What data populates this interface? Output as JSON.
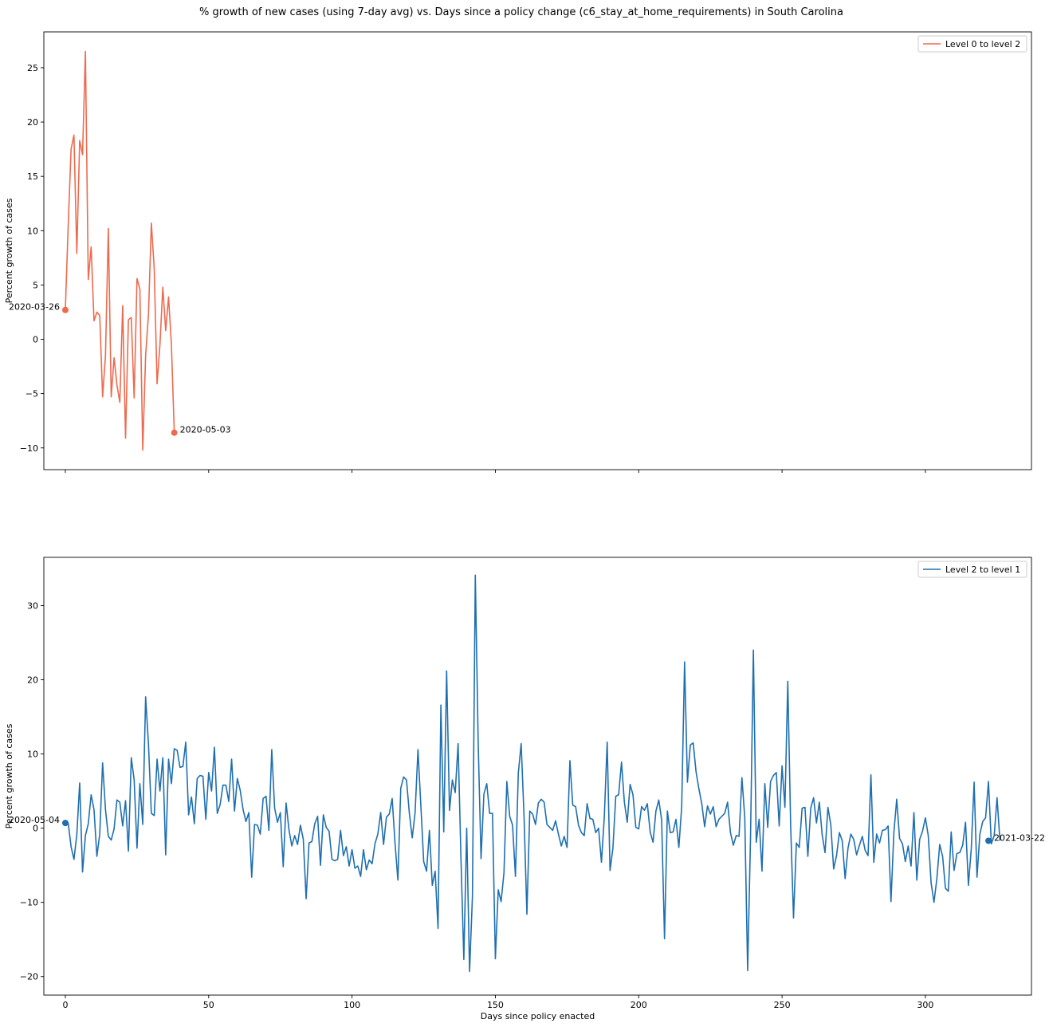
{
  "chart_data": [
    {
      "type": "line",
      "title": "% growth of new cases (using 7-day avg) vs. Days since a policy change (c6_stay_at_home_requirements) in South Carolina",
      "xlabel": "",
      "ylabel": "Percent growth of cases",
      "xlim": [
        -7.5,
        337
      ],
      "ylim": [
        -12,
        28.3
      ],
      "xticks": [
        0,
        50,
        100,
        150,
        200,
        250,
        300
      ],
      "xtick_labels_visible": false,
      "yticks": [
        -10,
        -5,
        0,
        5,
        10,
        15,
        20,
        25
      ],
      "ytick_labels": [
        "−10",
        "−5",
        "0",
        "5",
        "10",
        "15",
        "20",
        "25"
      ],
      "grid": false,
      "legend": "top-right",
      "series": [
        {
          "name": "Level 0 to level 2",
          "color": "#ee6a4e",
          "x": [
            0,
            1,
            2,
            3,
            4,
            5,
            6,
            7,
            8,
            9,
            10,
            11,
            12,
            13,
            14,
            15,
            16,
            17,
            18,
            19,
            20,
            21,
            22,
            23,
            24,
            25,
            26,
            27,
            28,
            29,
            30,
            31,
            32,
            33,
            34,
            35,
            36,
            37,
            38
          ],
          "y": [
            2.7,
            10.5,
            17.5,
            18.8,
            7.9,
            18.3,
            17.0,
            26.5,
            5.5,
            8.5,
            1.7,
            2.5,
            2.2,
            -5.3,
            -1.5,
            10.2,
            -5.3,
            -1.7,
            -4.2,
            -5.8,
            3.1,
            -9.1,
            1.8,
            2.0,
            -5.4,
            5.6,
            4.6,
            -10.2,
            -1.5,
            2.3,
            10.7,
            6.5,
            -4.1,
            -0.5,
            4.8,
            0.8,
            3.9,
            -0.5,
            -8.6
          ],
          "markers": [
            {
              "x": 0,
              "y": 2.7,
              "label": "2020-03-26",
              "side": "left"
            },
            {
              "x": 38,
              "y": -8.6,
              "label": "2020-05-03",
              "side": "right"
            }
          ]
        }
      ]
    },
    {
      "type": "line",
      "title": "",
      "xlabel": "Days since policy enacted",
      "ylabel": "Percent growth of cases",
      "xlim": [
        -7.5,
        337
      ],
      "ylim": [
        -22.5,
        36.5
      ],
      "xticks": [
        0,
        50,
        100,
        150,
        200,
        250,
        300
      ],
      "xtick_labels": [
        "0",
        "50",
        "100",
        "150",
        "200",
        "250",
        "300"
      ],
      "yticks": [
        -20,
        -10,
        0,
        10,
        20,
        30
      ],
      "ytick_labels": [
        "−20",
        "−10",
        "0",
        "10",
        "20",
        "30"
      ],
      "grid": false,
      "legend": "top-right",
      "series": [
        {
          "name": "Level 2 to level 1",
          "color": "#1f6fb0",
          "x_start": 0,
          "x_step": 1,
          "y": [
            0.7,
            0.7,
            -2.5,
            -4.2,
            -0.9,
            6.1,
            -5.9,
            -1.0,
            0.6,
            4.5,
            2.5,
            -3.8,
            -0.8,
            8.8,
            2.5,
            -1.1,
            -1.6,
            -0.1,
            3.8,
            3.5,
            0.3,
            3.7,
            -3.1,
            9.5,
            6.5,
            -2.7,
            6.0,
            0.5,
            17.7,
            11.3,
            2.0,
            1.7,
            9.3,
            5.0,
            9.5,
            -3.6,
            9.3,
            6.0,
            10.7,
            10.5,
            8.2,
            8.3,
            11.6,
            1.8,
            4.2,
            0.6,
            6.7,
            7.1,
            7.0,
            1.2,
            7.5,
            5.0,
            10.9,
            2.0,
            3.2,
            5.8,
            5.8,
            3.6,
            9.3,
            2.3,
            6.7,
            5.1,
            2.5,
            0.9,
            2.1,
            -6.6,
            0.5,
            0.4,
            -0.8,
            4.0,
            4.3,
            -0.3,
            10.6,
            2.7,
            0.8,
            2.1,
            -5.2,
            3.4,
            -0.2,
            -2.4,
            -1.0,
            -2.2,
            0.4,
            -1.5,
            -9.5,
            -2.0,
            -1.8,
            0.6,
            1.6,
            -5.0,
            1.8,
            0.1,
            -0.4,
            -4.2,
            -4.4,
            -4.2,
            -0.3,
            -3.7,
            -2.5,
            -5.1,
            -2.9,
            -5.4,
            -5.1,
            -6.5,
            -2.9,
            -5.6,
            -4.3,
            -4.8,
            -2.1,
            -0.8,
            2.1,
            -2.2,
            1.5,
            1.9,
            4.0,
            -2.0,
            -7.0,
            5.4,
            6.9,
            6.5,
            2.0,
            -1.3,
            2.1,
            10.6,
            3.1,
            -4.5,
            -5.8,
            -0.3,
            -7.7,
            -5.8,
            -13.5,
            16.6,
            -0.5,
            21.2,
            2.4,
            6.5,
            4.8,
            11.4,
            -4.1,
            -17.7,
            0.0,
            -19.3,
            -9.2,
            34.1,
            11.7,
            -4.1,
            4.6,
            6.0,
            2.0,
            2.0,
            -17.6,
            -8.3,
            -9.9,
            -6.0,
            6.3,
            1.6,
            0.4,
            -6.5,
            7.4,
            11.4,
            1.6,
            -11.6,
            2.3,
            1.9,
            0.5,
            3.4,
            3.9,
            3.5,
            0.5,
            0.1,
            -0.3,
            1.0,
            -0.8,
            -2.4,
            -1.1,
            -2.6,
            9.1,
            3.1,
            2.9,
            0.4,
            -0.6,
            -1.0,
            3.3,
            1.3,
            1.2,
            -0.6,
            0.0,
            -4.6,
            1.5,
            11.6,
            -5.7,
            -2.7,
            4.3,
            4.5,
            8.9,
            3.5,
            0.8,
            5.9,
            4.5,
            0.1,
            -0.1,
            2.9,
            2.4,
            3.3,
            -0.5,
            -1.9,
            2.3,
            3.8,
            1.1,
            -14.9,
            2.3,
            -0.6,
            -0.5,
            1.2,
            -2.6,
            2.9,
            22.4,
            6.2,
            11.2,
            11.5,
            7.6,
            5.3,
            3.3,
            0.2,
            3.0,
            1.9,
            2.9,
            0.2,
            1.2,
            1.6,
            2.0,
            3.5,
            -0.6,
            -2.3,
            -1.0,
            -1.1,
            6.8,
            1.4,
            -19.2,
            -1.3,
            24.0,
            -1.9,
            1.2,
            -5.8,
            6.0,
            0.1,
            6.3,
            7.1,
            7.5,
            0.3,
            8.4,
            2.8,
            19.8,
            0.4,
            -12.1,
            -2.0,
            -2.6,
            2.7,
            2.8,
            -3.8,
            2.7,
            4.1,
            0.7,
            3.5,
            -0.9,
            -3.3,
            2.8,
            0.5,
            -5.5,
            -3.7,
            -0.6,
            -1.7,
            -6.8,
            -2.7,
            -0.8,
            -1.5,
            -3.6,
            -2.3,
            -1.1,
            -3.0,
            -3.7,
            7.2,
            -4.6,
            -0.8,
            -2.0,
            -0.3,
            -0.2,
            0.3,
            -9.9,
            -0.6,
            3.9,
            -1.4,
            -2.1,
            -4.5,
            -2.4,
            -5.1,
            2.1,
            -7.0,
            -1.5,
            -0.4,
            1.4,
            -1.0,
            -7.4,
            -10.0,
            -6.8,
            -2.2,
            -3.8,
            -8.1,
            -8.5,
            -0.5,
            -5.7,
            -3.4,
            -3.3,
            -2.3,
            0.8,
            -7.7,
            -2.8,
            6.2,
            -6.6,
            -0.8,
            0.9,
            1.4,
            6.3,
            -2.1,
            -1.0,
            4.1,
            -1.7
          ],
          "markers": [
            {
              "x": 0,
              "y": 0.7,
              "label": "2020-05-04",
              "side": "left"
            },
            {
              "x": 322,
              "y": -1.7,
              "label": "2021-03-22",
              "side": "right"
            }
          ]
        }
      ]
    }
  ]
}
